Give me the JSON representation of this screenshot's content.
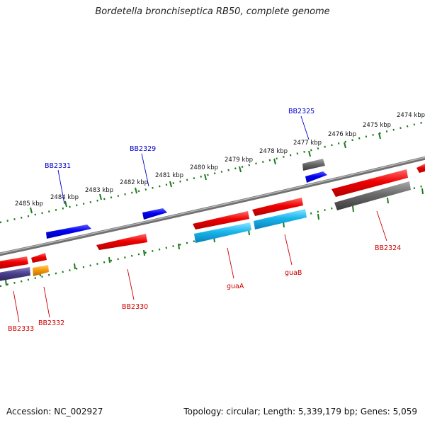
{
  "title": "Bordetella bronchiseptica RB50, complete genome",
  "footer": {
    "accession": "Accession: NC_002927",
    "stats": "Topology: circular; Length: 5,339,179 bp; Genes: 5,059"
  },
  "colors": {
    "backbone": "#808080",
    "forward_ruler": "#1a7a1a",
    "red": "#ee0000",
    "blue": "#0000ee",
    "cyan": "#16b8ee",
    "gray": "#5a5a5a",
    "purple": "#4a3f8c",
    "orange": "#f59a0a",
    "label_forward": "#0000cc",
    "label_reverse": "#cc0000"
  },
  "ruler_labels": [
    "2474 kbp",
    "2475 kbp",
    "2476 kbp",
    "2477 kbp",
    "2478 kbp",
    "2479 kbp",
    "2480 kbp",
    "2481 kbp",
    "2482 kbp",
    "2483 kbp",
    "2484 kbp",
    "2485 kbp"
  ],
  "gene_labels": {
    "forward": [
      "BB2325",
      "BB2329",
      "BB2331"
    ],
    "reverse": [
      "BB2324",
      "guaB",
      "guaA",
      "BB2330",
      "BB2332",
      "BB2333"
    ]
  }
}
